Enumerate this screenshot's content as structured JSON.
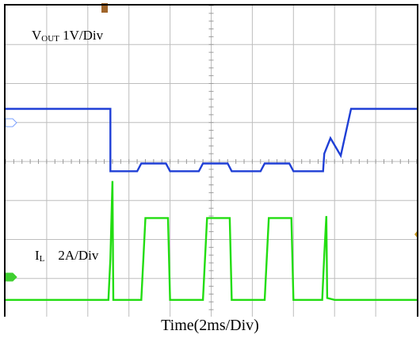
{
  "chart_data": {
    "type": "line",
    "xlabel": "Time(2ms/Div)",
    "x_unit_per_div": "2ms",
    "divisions": {
      "x": 10,
      "y": 8
    },
    "grid": true,
    "trigger_marker": "T",
    "colors": {
      "vout": "#1f3fd6",
      "il": "#22dd11",
      "grid": "#bdbdbd",
      "frame": "#000000",
      "bg": "#ffffff"
    },
    "series": [
      {
        "name": "VOUT 1V/Div",
        "label_main": "V",
        "label_sub": "OUT",
        "label_rest": " 1V/Div",
        "channel_marker": "C1",
        "unit": "div",
        "x": [
          0.0,
          2.5,
          2.55,
          2.55,
          3.2,
          3.3,
          3.9,
          4.0,
          4.7,
          4.8,
          5.4,
          5.5,
          6.2,
          6.3,
          6.9,
          7.0,
          7.6,
          7.72,
          7.75,
          7.9,
          8.15,
          8.4,
          10.0
        ],
        "values": [
          5.35,
          5.35,
          5.35,
          3.75,
          3.75,
          3.95,
          3.95,
          3.75,
          3.75,
          3.95,
          3.95,
          3.75,
          3.75,
          3.95,
          3.95,
          3.75,
          3.75,
          3.75,
          4.2,
          4.6,
          4.15,
          5.35,
          5.35
        ]
      },
      {
        "name": "IL 2A/Div",
        "label_main": "I",
        "label_sub": "L",
        "label_rest": "    2A/Div",
        "channel_marker": "C4",
        "unit": "div",
        "x": [
          0.0,
          2.5,
          2.55,
          2.6,
          2.62,
          3.3,
          3.35,
          3.4,
          3.95,
          4.0,
          4.8,
          4.85,
          4.9,
          5.45,
          5.5,
          6.3,
          6.35,
          6.4,
          6.95,
          7.0,
          7.7,
          7.75,
          7.8,
          7.82,
          8.0,
          10.0
        ],
        "values": [
          0.45,
          0.45,
          1.5,
          3.5,
          0.45,
          0.45,
          1.5,
          2.55,
          2.55,
          0.45,
          0.45,
          1.5,
          2.55,
          2.55,
          0.45,
          0.45,
          1.5,
          2.55,
          2.55,
          0.45,
          0.45,
          1.6,
          2.6,
          0.5,
          0.45,
          0.45
        ]
      }
    ]
  }
}
